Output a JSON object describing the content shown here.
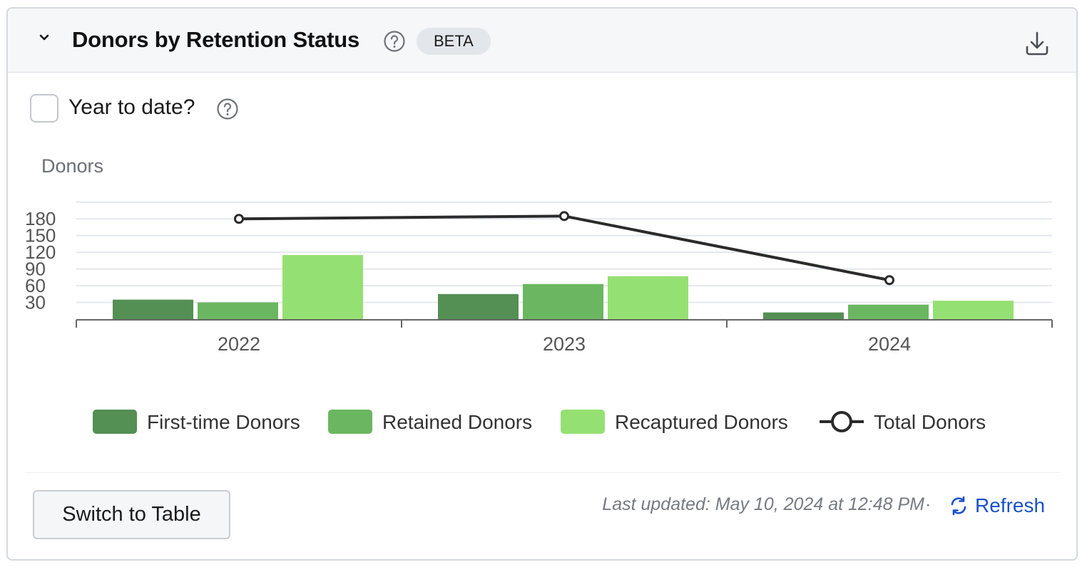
{
  "header": {
    "title": "Donors by Retention Status",
    "badge": "BETA"
  },
  "controls": {
    "ytd_label": "Year to date?"
  },
  "footer": {
    "switch_label": "Switch to Table",
    "last_updated": "Last updated: May 10, 2024 at 12:48 PM",
    "separator": "·",
    "refresh_label": "Refresh"
  },
  "icons": {
    "collapse": "chevron-down-icon",
    "help": "question-circle-icon",
    "download": "download-icon",
    "refresh": "refresh-icon"
  },
  "colors": {
    "first_time": "#548f53",
    "retained": "#6bb661",
    "recaptured": "#95e072",
    "total": "#2b2b2b",
    "link": "#1a52c8"
  },
  "chart_data": {
    "type": "bar",
    "ylabel": "Donors",
    "categories": [
      "2022",
      "2023",
      "2024"
    ],
    "yticks": [
      30,
      60,
      90,
      120,
      150,
      180
    ],
    "series": [
      {
        "name": "First-time Donors",
        "kind": "bar",
        "values": [
          35,
          45,
          12
        ]
      },
      {
        "name": "Retained Donors",
        "kind": "bar",
        "values": [
          30,
          63,
          26
        ]
      },
      {
        "name": "Recaptured Donors",
        "kind": "bar",
        "values": [
          115,
          77,
          33
        ]
      },
      {
        "name": "Total Donors",
        "kind": "line",
        "values": [
          180,
          185,
          70
        ]
      }
    ],
    "legend_position": "bottom",
    "grid": true
  }
}
